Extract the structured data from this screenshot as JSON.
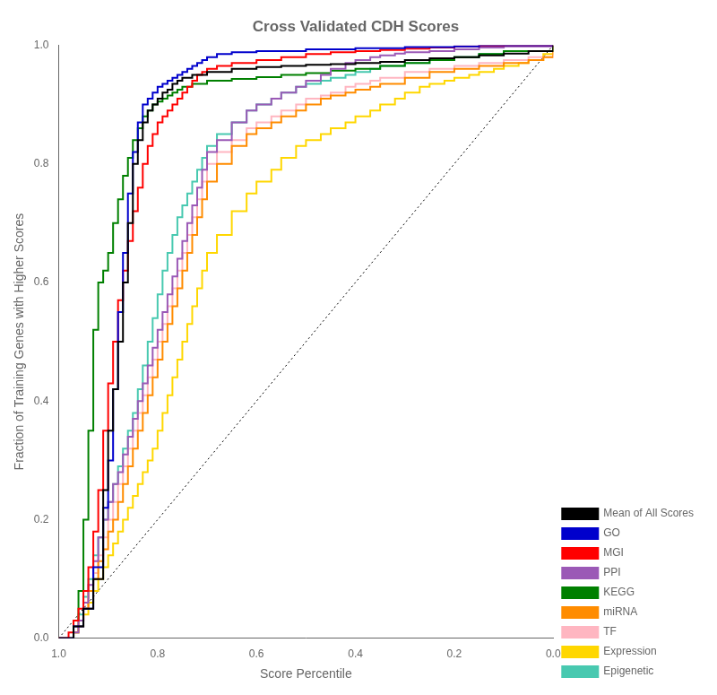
{
  "chart_data": {
    "type": "step",
    "title": "Cross Validated CDH Scores",
    "xlabel": "Score Percentile",
    "ylabel": "Fraction of Training Genes with Higher Scores",
    "xlim": [
      1.0,
      0.0
    ],
    "ylim": [
      0.0,
      1.0
    ],
    "xticks": [
      {
        "value": 1.0,
        "label": "1.0"
      },
      0.8,
      0.6,
      0.4,
      0.2,
      {
        "value": 0.0,
        "label": "0.0"
      }
    ],
    "yticks": [
      {
        "value": 0.0,
        "label": "0.0"
      },
      0.2,
      0.4,
      0.6,
      0.8,
      {
        "value": 1.0,
        "label": "1.0"
      }
    ],
    "grid": false,
    "legend": "lower right",
    "series": [
      {
        "name": "Mean of All Scores",
        "color": "#000000",
        "x": [
          1.0,
          0.97,
          0.95,
          0.93,
          0.91,
          0.9,
          0.89,
          0.88,
          0.87,
          0.86,
          0.85,
          0.84,
          0.83,
          0.82,
          0.81,
          0.8,
          0.79,
          0.78,
          0.77,
          0.76,
          0.75,
          0.73,
          0.7,
          0.65,
          0.6,
          0.55,
          0.5,
          0.45,
          0.4,
          0.35,
          0.3,
          0.25,
          0.2,
          0.15,
          0.1,
          0.05,
          0.0
        ],
        "values": [
          0.0,
          0.02,
          0.05,
          0.1,
          0.25,
          0.35,
          0.42,
          0.5,
          0.6,
          0.7,
          0.8,
          0.84,
          0.87,
          0.89,
          0.9,
          0.91,
          0.92,
          0.925,
          0.935,
          0.94,
          0.945,
          0.95,
          0.955,
          0.96,
          0.963,
          0.965,
          0.967,
          0.968,
          0.97,
          0.972,
          0.975,
          0.978,
          0.98,
          0.983,
          0.986,
          0.99,
          1.0
        ]
      },
      {
        "name": "GO",
        "color": "#0000CC",
        "x": [
          1.0,
          0.97,
          0.95,
          0.93,
          0.91,
          0.9,
          0.89,
          0.88,
          0.87,
          0.86,
          0.85,
          0.84,
          0.83,
          0.82,
          0.81,
          0.8,
          0.79,
          0.78,
          0.77,
          0.76,
          0.75,
          0.74,
          0.73,
          0.72,
          0.71,
          0.7,
          0.68,
          0.65,
          0.6,
          0.5,
          0.4,
          0.3,
          0.2,
          0.15,
          0.0
        ],
        "values": [
          0.0,
          0.02,
          0.05,
          0.12,
          0.22,
          0.3,
          0.42,
          0.55,
          0.65,
          0.75,
          0.82,
          0.87,
          0.9,
          0.91,
          0.92,
          0.93,
          0.935,
          0.94,
          0.945,
          0.95,
          0.955,
          0.96,
          0.965,
          0.97,
          0.975,
          0.98,
          0.985,
          0.988,
          0.99,
          0.993,
          0.995,
          0.997,
          0.998,
          1.0,
          1.0
        ]
      },
      {
        "name": "MGI",
        "color": "#FF0000",
        "x": [
          1.0,
          0.98,
          0.97,
          0.96,
          0.95,
          0.94,
          0.93,
          0.92,
          0.91,
          0.9,
          0.89,
          0.88,
          0.87,
          0.86,
          0.85,
          0.84,
          0.83,
          0.82,
          0.81,
          0.8,
          0.79,
          0.78,
          0.77,
          0.76,
          0.75,
          0.74,
          0.73,
          0.72,
          0.71,
          0.7,
          0.68,
          0.65,
          0.6,
          0.55,
          0.5,
          0.45,
          0.4,
          0.35,
          0.3,
          0.25,
          0.2,
          0.15,
          0.1,
          0.0
        ],
        "values": [
          0.0,
          0.01,
          0.03,
          0.05,
          0.08,
          0.12,
          0.18,
          0.25,
          0.35,
          0.43,
          0.5,
          0.57,
          0.62,
          0.67,
          0.72,
          0.76,
          0.8,
          0.83,
          0.85,
          0.87,
          0.88,
          0.89,
          0.9,
          0.91,
          0.92,
          0.93,
          0.94,
          0.95,
          0.955,
          0.96,
          0.965,
          0.97,
          0.975,
          0.98,
          0.985,
          0.988,
          0.99,
          0.992,
          0.994,
          0.996,
          0.998,
          0.999,
          1.0,
          1.0
        ]
      },
      {
        "name": "PPI",
        "color": "#9B59B6",
        "x": [
          1.0,
          0.97,
          0.96,
          0.95,
          0.94,
          0.93,
          0.92,
          0.91,
          0.9,
          0.89,
          0.88,
          0.87,
          0.86,
          0.85,
          0.84,
          0.83,
          0.82,
          0.81,
          0.8,
          0.79,
          0.78,
          0.77,
          0.76,
          0.75,
          0.74,
          0.73,
          0.72,
          0.71,
          0.7,
          0.68,
          0.65,
          0.62,
          0.6,
          0.57,
          0.55,
          0.52,
          0.5,
          0.47,
          0.45,
          0.42,
          0.4,
          0.37,
          0.35,
          0.32,
          0.3,
          0.25,
          0.2,
          0.15,
          0.1,
          0.0
        ],
        "values": [
          0.0,
          0.01,
          0.03,
          0.06,
          0.09,
          0.13,
          0.17,
          0.2,
          0.23,
          0.26,
          0.28,
          0.31,
          0.34,
          0.37,
          0.4,
          0.43,
          0.46,
          0.49,
          0.52,
          0.55,
          0.58,
          0.61,
          0.64,
          0.67,
          0.7,
          0.73,
          0.76,
          0.79,
          0.82,
          0.84,
          0.87,
          0.89,
          0.9,
          0.91,
          0.92,
          0.93,
          0.94,
          0.95,
          0.96,
          0.97,
          0.975,
          0.98,
          0.983,
          0.986,
          0.988,
          0.99,
          0.993,
          0.996,
          0.998,
          1.0
        ]
      },
      {
        "name": "KEGG",
        "color": "#008000",
        "x": [
          1.0,
          0.97,
          0.96,
          0.95,
          0.94,
          0.93,
          0.92,
          0.91,
          0.9,
          0.89,
          0.88,
          0.87,
          0.86,
          0.85,
          0.84,
          0.83,
          0.82,
          0.81,
          0.8,
          0.79,
          0.78,
          0.77,
          0.76,
          0.75,
          0.73,
          0.7,
          0.65,
          0.6,
          0.55,
          0.5,
          0.45,
          0.4,
          0.35,
          0.3,
          0.25,
          0.2,
          0.15,
          0.1,
          0.0
        ],
        "values": [
          0.0,
          0.03,
          0.08,
          0.2,
          0.35,
          0.52,
          0.6,
          0.62,
          0.65,
          0.7,
          0.74,
          0.78,
          0.81,
          0.84,
          0.86,
          0.88,
          0.89,
          0.9,
          0.905,
          0.91,
          0.915,
          0.92,
          0.925,
          0.93,
          0.935,
          0.94,
          0.943,
          0.946,
          0.95,
          0.953,
          0.957,
          0.96,
          0.965,
          0.97,
          0.975,
          0.98,
          0.985,
          0.99,
          1.0
        ]
      },
      {
        "name": "miRNA",
        "color": "#FF8C00",
        "x": [
          1.0,
          0.97,
          0.96,
          0.95,
          0.94,
          0.93,
          0.92,
          0.91,
          0.9,
          0.89,
          0.88,
          0.87,
          0.86,
          0.85,
          0.84,
          0.83,
          0.82,
          0.81,
          0.8,
          0.79,
          0.78,
          0.77,
          0.76,
          0.75,
          0.74,
          0.73,
          0.72,
          0.71,
          0.7,
          0.68,
          0.65,
          0.62,
          0.6,
          0.57,
          0.55,
          0.52,
          0.5,
          0.47,
          0.45,
          0.42,
          0.4,
          0.37,
          0.35,
          0.3,
          0.25,
          0.2,
          0.15,
          0.1,
          0.05,
          0.02,
          0.0
        ],
        "values": [
          0.0,
          0.01,
          0.03,
          0.05,
          0.08,
          0.1,
          0.13,
          0.15,
          0.18,
          0.2,
          0.23,
          0.26,
          0.29,
          0.32,
          0.35,
          0.38,
          0.41,
          0.44,
          0.47,
          0.5,
          0.53,
          0.56,
          0.59,
          0.62,
          0.65,
          0.68,
          0.71,
          0.74,
          0.77,
          0.8,
          0.83,
          0.85,
          0.86,
          0.87,
          0.88,
          0.89,
          0.9,
          0.91,
          0.915,
          0.92,
          0.925,
          0.93,
          0.935,
          0.945,
          0.955,
          0.96,
          0.965,
          0.97,
          0.975,
          0.98,
          1.0
        ]
      },
      {
        "name": "TF",
        "color": "#FFB6C1",
        "x": [
          1.0,
          0.97,
          0.96,
          0.95,
          0.94,
          0.93,
          0.92,
          0.91,
          0.9,
          0.89,
          0.88,
          0.87,
          0.86,
          0.85,
          0.84,
          0.83,
          0.82,
          0.81,
          0.8,
          0.79,
          0.78,
          0.77,
          0.76,
          0.75,
          0.74,
          0.73,
          0.72,
          0.71,
          0.7,
          0.68,
          0.65,
          0.62,
          0.6,
          0.57,
          0.55,
          0.52,
          0.5,
          0.47,
          0.45,
          0.42,
          0.4,
          0.37,
          0.35,
          0.3,
          0.25,
          0.2,
          0.15,
          0.1,
          0.05,
          0.0
        ],
        "values": [
          0.0,
          0.01,
          0.03,
          0.05,
          0.08,
          0.11,
          0.14,
          0.17,
          0.2,
          0.23,
          0.26,
          0.29,
          0.32,
          0.35,
          0.38,
          0.41,
          0.44,
          0.47,
          0.5,
          0.53,
          0.56,
          0.59,
          0.62,
          0.65,
          0.68,
          0.71,
          0.74,
          0.77,
          0.8,
          0.82,
          0.84,
          0.86,
          0.87,
          0.88,
          0.89,
          0.9,
          0.91,
          0.915,
          0.92,
          0.93,
          0.935,
          0.94,
          0.945,
          0.955,
          0.96,
          0.965,
          0.97,
          0.975,
          0.98,
          1.0
        ]
      },
      {
        "name": "Expression",
        "color": "#FFD700",
        "x": [
          1.0,
          0.98,
          0.97,
          0.96,
          0.95,
          0.94,
          0.93,
          0.92,
          0.91,
          0.9,
          0.89,
          0.88,
          0.87,
          0.86,
          0.85,
          0.84,
          0.83,
          0.82,
          0.81,
          0.8,
          0.79,
          0.78,
          0.77,
          0.76,
          0.75,
          0.74,
          0.73,
          0.72,
          0.71,
          0.7,
          0.68,
          0.65,
          0.62,
          0.6,
          0.57,
          0.55,
          0.52,
          0.5,
          0.47,
          0.45,
          0.42,
          0.4,
          0.37,
          0.35,
          0.32,
          0.3,
          0.27,
          0.25,
          0.22,
          0.2,
          0.17,
          0.15,
          0.12,
          0.1,
          0.07,
          0.05,
          0.02,
          0.0
        ],
        "values": [
          0.0,
          0.0,
          0.01,
          0.02,
          0.04,
          0.06,
          0.08,
          0.1,
          0.12,
          0.14,
          0.16,
          0.18,
          0.2,
          0.22,
          0.24,
          0.26,
          0.28,
          0.3,
          0.32,
          0.35,
          0.38,
          0.41,
          0.44,
          0.47,
          0.5,
          0.53,
          0.56,
          0.59,
          0.62,
          0.65,
          0.68,
          0.72,
          0.75,
          0.77,
          0.79,
          0.81,
          0.83,
          0.84,
          0.85,
          0.86,
          0.87,
          0.88,
          0.89,
          0.9,
          0.91,
          0.92,
          0.93,
          0.935,
          0.94,
          0.945,
          0.95,
          0.955,
          0.96,
          0.965,
          0.97,
          0.975,
          0.985,
          1.0
        ]
      },
      {
        "name": "Epigenetic",
        "color": "#48C9B0",
        "x": [
          1.0,
          0.97,
          0.96,
          0.95,
          0.94,
          0.93,
          0.92,
          0.91,
          0.9,
          0.89,
          0.88,
          0.87,
          0.86,
          0.85,
          0.84,
          0.83,
          0.82,
          0.81,
          0.8,
          0.79,
          0.78,
          0.77,
          0.76,
          0.75,
          0.74,
          0.73,
          0.72,
          0.71,
          0.7,
          0.68,
          0.65,
          0.62,
          0.6,
          0.57,
          0.55,
          0.52,
          0.5,
          0.47,
          0.45,
          0.42,
          0.4,
          0.37,
          0.35,
          0.3,
          0.25,
          0.2,
          0.15,
          0.1,
          0.0
        ],
        "values": [
          0.0,
          0.01,
          0.04,
          0.07,
          0.1,
          0.14,
          0.17,
          0.2,
          0.23,
          0.26,
          0.29,
          0.32,
          0.35,
          0.38,
          0.42,
          0.46,
          0.5,
          0.54,
          0.58,
          0.62,
          0.65,
          0.68,
          0.71,
          0.73,
          0.75,
          0.77,
          0.79,
          0.81,
          0.83,
          0.85,
          0.87,
          0.89,
          0.9,
          0.91,
          0.92,
          0.93,
          0.935,
          0.94,
          0.945,
          0.95,
          0.955,
          0.96,
          0.965,
          0.97,
          0.975,
          0.98,
          0.985,
          0.99,
          1.0
        ]
      },
      {
        "type": "line",
        "line_style": "dotted",
        "color": "#000000",
        "x": [
          1.0,
          0.0
        ],
        "values": [
          0.0,
          1.0
        ]
      }
    ]
  }
}
